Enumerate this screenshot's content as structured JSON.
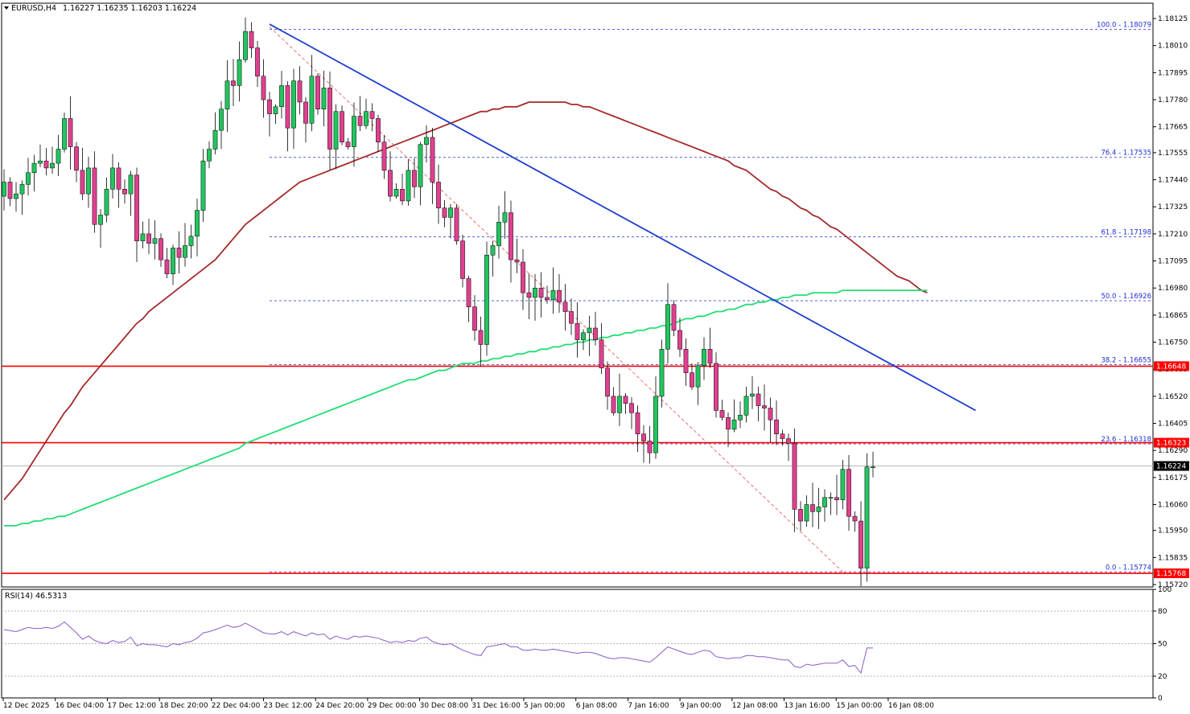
{
  "chart_data": {
    "type": "candlestick",
    "symbol": "EURUSD,H4",
    "ohlc_header": "1.16227 1.16235 1.16203 1.16224",
    "y_axis_ticks": [
      "1.18125",
      "1.18010",
      "1.17895",
      "1.17780",
      "1.17665",
      "1.17555",
      "1.17440",
      "1.17325",
      "1.17210",
      "1.17095",
      "1.16980",
      "1.16865",
      "1.16750",
      "1.16635",
      "1.16520",
      "1.16405",
      "1.16290",
      "1.16175",
      "1.16060",
      "1.15950",
      "1.15835",
      "1.15720"
    ],
    "x_axis_labels": [
      "12 Dec 2025",
      "16 Dec 04:00",
      "17 Dec 12:00",
      "18 Dec 20:00",
      "22 Dec 04:00",
      "23 Dec 12:00",
      "24 Dec 20:00",
      "29 Dec 00:00",
      "30 Dec 08:00",
      "31 Dec 16:00",
      "5 Jan 00:00",
      "6 Jan 08:00",
      "7 Jan 16:00",
      "9 Jan 00:00",
      "12 Jan 08:00",
      "13 Jan 16:00",
      "15 Jan 00:00",
      "16 Jan 08:00"
    ],
    "ylim": [
      1.1571,
      1.1819
    ],
    "closes": [
      1.1743,
      1.1736,
      1.1738,
      1.1742,
      1.1747,
      1.1751,
      1.1752,
      1.1749,
      1.1751,
      1.1757,
      1.177,
      1.1758,
      1.1748,
      1.1738,
      1.1749,
      1.1725,
      1.1729,
      1.174,
      1.1749,
      1.174,
      1.1738,
      1.1746,
      1.1718,
      1.1721,
      1.1717,
      1.1719,
      1.171,
      1.1704,
      1.1715,
      1.1711,
      1.1716,
      1.172,
      1.1731,
      1.1752,
      1.1757,
      1.1765,
      1.1774,
      1.1786,
      1.1784,
      1.1795,
      1.1807,
      1.18,
      1.1788,
      1.1778,
      1.1772,
      1.1775,
      1.1784,
      1.1766,
      1.1786,
      1.1777,
      1.1768,
      1.1788,
      1.1774,
      1.1783,
      1.1757,
      1.1773,
      1.176,
      1.1758,
      1.1771,
      1.1767,
      1.1773,
      1.177,
      1.176,
      1.1748,
      1.1737,
      1.174,
      1.1735,
      1.1748,
      1.1741,
      1.1759,
      1.1762,
      1.1743,
      1.1732,
      1.1728,
      1.1732,
      1.1718,
      1.1702,
      1.169,
      1.168,
      1.1674,
      1.1712,
      1.1716,
      1.1726,
      1.173,
      1.171,
      1.1709,
      1.1696,
      1.1694,
      1.1698,
      1.1694,
      1.1693,
      1.1697,
      1.1692,
      1.1688,
      1.1683,
      1.1676,
      1.1679,
      1.1681,
      1.1676,
      1.1664,
      1.1652,
      1.1645,
      1.1652,
      1.1649,
      1.1645,
      1.1636,
      1.1633,
      1.1628,
      1.1652,
      1.1672,
      1.1691,
      1.168,
      1.1672,
      1.1662,
      1.1656,
      1.1665,
      1.1672,
      1.1666,
      1.1646,
      1.1643,
      1.1638,
      1.1642,
      1.1644,
      1.1652,
      1.1653,
      1.1648,
      1.1647,
      1.1642,
      1.1636,
      1.1634,
      1.1632,
      1.1604,
      1.1599,
      1.1606,
      1.1603,
      1.1605,
      1.1609,
      1.1609,
      1.1608,
      1.1621,
      1.1601,
      1.1599,
      1.1579,
      1.1622,
      1.1622
    ],
    "ma_red": {
      "start_index": 0,
      "values": [
        1.1608,
        1.1611,
        1.1614,
        1.1617,
        1.1621,
        1.1625,
        1.1629,
        1.1633,
        1.1637,
        1.1641,
        1.1645,
        1.1648,
        1.1652,
        1.1656,
        1.1659,
        1.1662,
        1.1665,
        1.1668,
        1.1671,
        1.1674,
        1.1677,
        1.168,
        1.1683,
        1.1685,
        1.1688,
        1.169,
        1.1692,
        1.1694,
        1.1696,
        1.1698,
        1.17,
        1.1702,
        1.1704,
        1.1706,
        1.1708,
        1.171,
        1.1713,
        1.1716,
        1.1719,
        1.1722,
        1.1725,
        1.1727,
        1.1729,
        1.1731,
        1.1733,
        1.1735,
        1.1737,
        1.1739,
        1.1741,
        1.1743,
        1.1744,
        1.1745,
        1.1746,
        1.1747,
        1.1748,
        1.1749,
        1.175,
        1.1751,
        1.1752,
        1.1753,
        1.1754,
        1.1755,
        1.1756,
        1.1757,
        1.1758,
        1.1759,
        1.176,
        1.1761,
        1.1762,
        1.1763,
        1.1764,
        1.1765,
        1.1766,
        1.1767,
        1.1768,
        1.1769,
        1.177,
        1.1771,
        1.1772,
        1.1773,
        1.1773,
        1.1774,
        1.1774,
        1.1775,
        1.1775,
        1.1775,
        1.1776,
        1.1777,
        1.1777,
        1.1777,
        1.1777,
        1.1777,
        1.1777,
        1.1777,
        1.1776,
        1.1776,
        1.1775,
        1.1775,
        1.1774,
        1.1773,
        1.1772,
        1.1771,
        1.177,
        1.1769,
        1.1768,
        1.1767,
        1.1766,
        1.1765,
        1.1764,
        1.1763,
        1.1762,
        1.1761,
        1.176,
        1.1759,
        1.1758,
        1.1757,
        1.1756,
        1.1755,
        1.1754,
        1.1753,
        1.1752,
        1.175,
        1.1749,
        1.1748,
        1.1746,
        1.1744,
        1.1742,
        1.174,
        1.1739,
        1.1737,
        1.1736,
        1.1734,
        1.1732,
        1.1731,
        1.1729,
        1.1728,
        1.1726,
        1.1724,
        1.1723,
        1.1721,
        1.1719,
        1.1717,
        1.1715,
        1.1713,
        1.1711,
        1.1709,
        1.1707,
        1.1705,
        1.1703,
        1.1702,
        1.1701,
        1.1699,
        1.1697,
        1.1696
      ]
    },
    "ma_green": {
      "start_index": 0,
      "values": [
        1.1597,
        1.1597,
        1.1597,
        1.1598,
        1.1598,
        1.1599,
        1.1599,
        1.16,
        1.16,
        1.1601,
        1.1601,
        1.1602,
        1.1603,
        1.1604,
        1.1605,
        1.1606,
        1.1607,
        1.1608,
        1.1609,
        1.161,
        1.1611,
        1.1612,
        1.1613,
        1.1614,
        1.1615,
        1.1616,
        1.1617,
        1.1618,
        1.1619,
        1.162,
        1.1621,
        1.1622,
        1.1623,
        1.1624,
        1.1625,
        1.1626,
        1.1627,
        1.1628,
        1.1629,
        1.163,
        1.1632,
        1.1633,
        1.1634,
        1.1635,
        1.1636,
        1.1637,
        1.1638,
        1.1639,
        1.164,
        1.1641,
        1.1642,
        1.1643,
        1.1644,
        1.1645,
        1.1646,
        1.1647,
        1.1648,
        1.1649,
        1.165,
        1.1651,
        1.1652,
        1.1653,
        1.1654,
        1.1655,
        1.1656,
        1.1657,
        1.1658,
        1.1659,
        1.1659,
        1.166,
        1.1661,
        1.1662,
        1.1663,
        1.1663,
        1.1664,
        1.1665,
        1.1666,
        1.1666,
        1.1666,
        1.1667,
        1.1667,
        1.1668,
        1.1668,
        1.1669,
        1.1669,
        1.167,
        1.167,
        1.1671,
        1.1671,
        1.1672,
        1.1672,
        1.1673,
        1.1673,
        1.1674,
        1.1674,
        1.1675,
        1.1675,
        1.1676,
        1.1676,
        1.1677,
        1.1677,
        1.1678,
        1.1678,
        1.1679,
        1.1679,
        1.168,
        1.168,
        1.1681,
        1.1681,
        1.1682,
        1.1682,
        1.1683,
        1.1684,
        1.1685,
        1.1685,
        1.1686,
        1.1686,
        1.1687,
        1.1688,
        1.1688,
        1.1689,
        1.1689,
        1.169,
        1.1691,
        1.1691,
        1.1692,
        1.1692,
        1.1693,
        1.1693,
        1.1694,
        1.1694,
        1.1695,
        1.1695,
        1.1695,
        1.1696,
        1.1696,
        1.1696,
        1.1696,
        1.1696,
        1.1697,
        1.1697,
        1.1697,
        1.1697,
        1.1697,
        1.1697,
        1.1697,
        1.1697,
        1.1697,
        1.1697,
        1.1697,
        1.1697,
        1.1697,
        1.1697,
        1.1697
      ]
    },
    "trendline": {
      "from_index": 44,
      "from_value": 1.18101,
      "to_index": 161,
      "to_value": 1.1646
    },
    "fib_diagonal": {
      "from_index": 44,
      "from_value": 1.1809,
      "to_index": 139,
      "to_value": 1.15774
    },
    "fib_start_index": 44,
    "fib_levels": [
      {
        "label": "100.0 - 1.18079",
        "value": 1.18079
      },
      {
        "label": "76.4 - 1.17535",
        "value": 1.17535
      },
      {
        "label": "61.8 - 1.17198",
        "value": 1.17198
      },
      {
        "label": "50.0 - 1.16926",
        "value": 1.16926
      },
      {
        "label": "38.2 - 1.16655",
        "value": 1.16655
      },
      {
        "label": "23.6 - 1.16318",
        "value": 1.16318
      },
      {
        "label": "0.0 - 1.15774",
        "value": 1.15774
      }
    ],
    "horizontal_levels": [
      {
        "tag": "1.16648",
        "value": 1.16648,
        "color": "#ff0000"
      },
      {
        "tag": "1.16323",
        "value": 1.16323,
        "color": "#ff0000"
      },
      {
        "tag": "1.15768",
        "value": 1.15768,
        "color": "#ff0000"
      }
    ],
    "current_price": {
      "tag": "1.16224",
      "value": 1.16224
    },
    "rsi": {
      "title": "RSI(14) 46.5313",
      "ticks": [
        "100",
        "80",
        "50",
        "20",
        "0"
      ],
      "levels": [
        80,
        50,
        20
      ],
      "ylim": [
        0,
        100
      ],
      "values": [
        63,
        62,
        61,
        63,
        65,
        64,
        64,
        65,
        64,
        66,
        70,
        65,
        60,
        54,
        57,
        53,
        51,
        50,
        53,
        51,
        52,
        56,
        48,
        50,
        49,
        49,
        48,
        47,
        50,
        49,
        51,
        52,
        55,
        60,
        61,
        63,
        65,
        67,
        65,
        66,
        69,
        66,
        63,
        60,
        59,
        59,
        61,
        58,
        61,
        59,
        57,
        60,
        58,
        59,
        54,
        57,
        55,
        54,
        57,
        56,
        57,
        56,
        55,
        53,
        51,
        52,
        51,
        53,
        52,
        55,
        56,
        52,
        50,
        49,
        50,
        47,
        44,
        42,
        40,
        39,
        47,
        48,
        49,
        50,
        47,
        47,
        44,
        44,
        45,
        44,
        44,
        45,
        44,
        43,
        42,
        41,
        42,
        42,
        41,
        39,
        37,
        36,
        37,
        37,
        36,
        35,
        34,
        33,
        37,
        42,
        47,
        45,
        43,
        41,
        40,
        42,
        44,
        43,
        38,
        37,
        36,
        37,
        37,
        39,
        39,
        38,
        38,
        37,
        36,
        35,
        35,
        29,
        28,
        31,
        30,
        31,
        32,
        32,
        32,
        35,
        29,
        30,
        23,
        46,
        46
      ]
    }
  }
}
